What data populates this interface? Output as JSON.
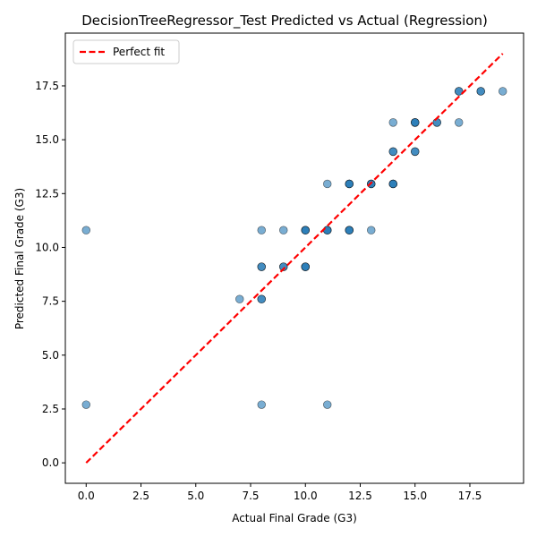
{
  "chart_data": {
    "type": "scatter",
    "title": "DecisionTreeRegressor_Test Predicted vs Actual (Regression)",
    "xlabel": "Actual Final Grade (G3)",
    "ylabel": "Predicted Final Grade (G3)",
    "xlim": [
      -0.95,
      19.95
    ],
    "ylim": [
      -0.95,
      19.95
    ],
    "xticks": [
      0.0,
      2.5,
      5.0,
      7.5,
      10.0,
      12.5,
      15.0,
      17.5
    ],
    "yticks": [
      0.0,
      2.5,
      5.0,
      7.5,
      10.0,
      12.5,
      15.0,
      17.5
    ],
    "xtick_labels": [
      "0.0",
      "2.5",
      "5.0",
      "7.5",
      "10.0",
      "12.5",
      "15.0",
      "17.5"
    ],
    "ytick_labels": [
      "0.0",
      "2.5",
      "5.0",
      "7.5",
      "10.0",
      "12.5",
      "15.0",
      "17.5"
    ],
    "grid": false,
    "legend_position": "top-left",
    "series": [
      {
        "name": "",
        "color": "#1f77b4",
        "points": [
          {
            "x": 0,
            "y": 10.8
          },
          {
            "x": 0,
            "y": 2.7
          },
          {
            "x": 7,
            "y": 7.6
          },
          {
            "x": 8,
            "y": 10.8
          },
          {
            "x": 8,
            "y": 9.1
          },
          {
            "x": 8,
            "y": 9.1
          },
          {
            "x": 8,
            "y": 7.6
          },
          {
            "x": 8,
            "y": 7.6
          },
          {
            "x": 8,
            "y": 2.7
          },
          {
            "x": 9,
            "y": 10.8
          },
          {
            "x": 9,
            "y": 9.1
          },
          {
            "x": 9,
            "y": 9.1
          },
          {
            "x": 10,
            "y": 10.8
          },
          {
            "x": 10,
            "y": 10.8
          },
          {
            "x": 10,
            "y": 10.8
          },
          {
            "x": 10,
            "y": 9.1
          },
          {
            "x": 10,
            "y": 9.1
          },
          {
            "x": 10,
            "y": 9.1
          },
          {
            "x": 11,
            "y": 12.95
          },
          {
            "x": 11,
            "y": 10.8
          },
          {
            "x": 11,
            "y": 10.8
          },
          {
            "x": 11,
            "y": 10.8
          },
          {
            "x": 11,
            "y": 2.7
          },
          {
            "x": 12,
            "y": 12.95
          },
          {
            "x": 12,
            "y": 12.95
          },
          {
            "x": 12,
            "y": 12.95
          },
          {
            "x": 12,
            "y": 10.8
          },
          {
            "x": 12,
            "y": 10.8
          },
          {
            "x": 12,
            "y": 10.8
          },
          {
            "x": 13,
            "y": 12.95
          },
          {
            "x": 13,
            "y": 12.95
          },
          {
            "x": 13,
            "y": 12.95
          },
          {
            "x": 13,
            "y": 10.8
          },
          {
            "x": 14,
            "y": 15.8
          },
          {
            "x": 14,
            "y": 14.45
          },
          {
            "x": 14,
            "y": 14.45
          },
          {
            "x": 14,
            "y": 12.95
          },
          {
            "x": 14,
            "y": 12.95
          },
          {
            "x": 14,
            "y": 12.95
          },
          {
            "x": 15,
            "y": 15.8
          },
          {
            "x": 15,
            "y": 15.8
          },
          {
            "x": 15,
            "y": 15.8
          },
          {
            "x": 15,
            "y": 14.45
          },
          {
            "x": 15,
            "y": 14.45
          },
          {
            "x": 16,
            "y": 15.8
          },
          {
            "x": 16,
            "y": 15.8
          },
          {
            "x": 17,
            "y": 17.25
          },
          {
            "x": 17,
            "y": 17.25
          },
          {
            "x": 17,
            "y": 15.8
          },
          {
            "x": 18,
            "y": 17.25
          },
          {
            "x": 18,
            "y": 17.25
          },
          {
            "x": 19,
            "y": 17.25
          }
        ]
      },
      {
        "name": "Perfect fit",
        "color": "#ff0000",
        "style": "dashed",
        "points": [
          {
            "x": 0,
            "y": 0
          },
          {
            "x": 19,
            "y": 19
          }
        ]
      }
    ]
  }
}
